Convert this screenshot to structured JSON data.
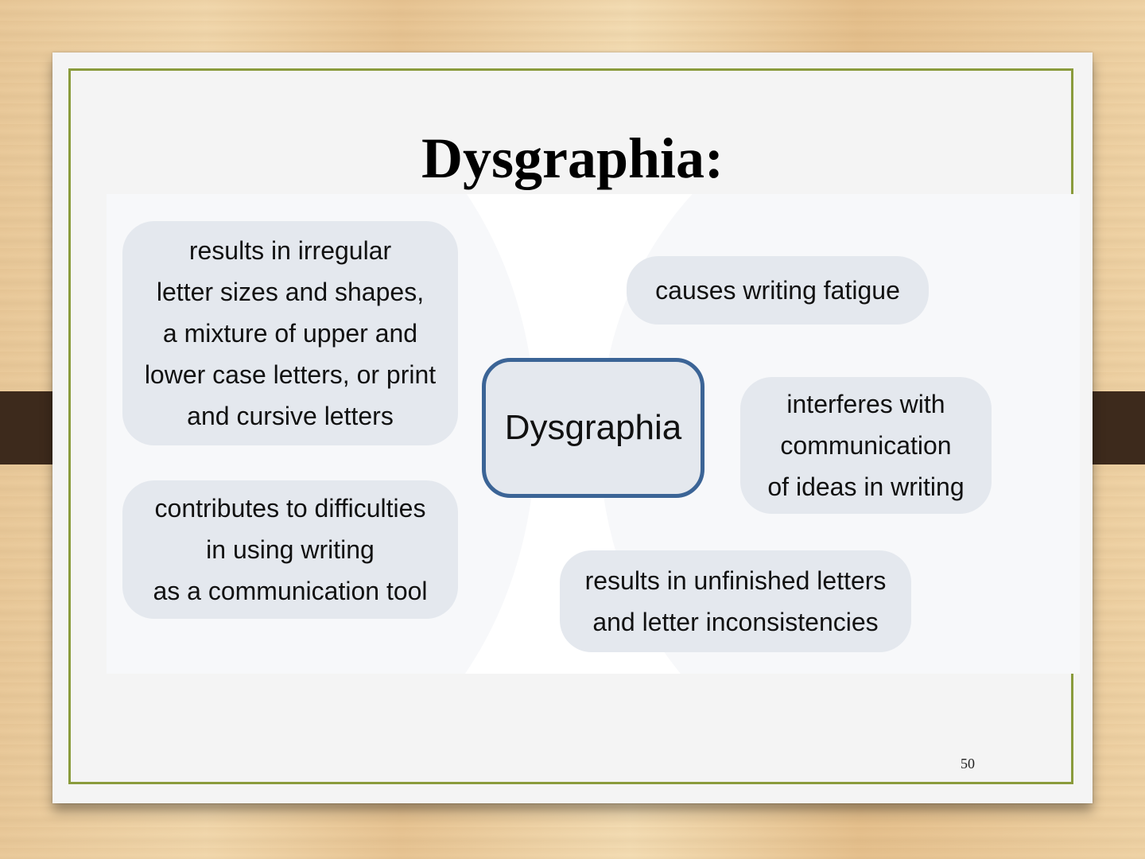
{
  "slide": {
    "title": "Dysgraphia:",
    "page_number": "50"
  },
  "diagram": {
    "center": "Dysgraphia",
    "nodes": [
      "results in irregular\nletter sizes and shapes,\na mixture of upper and\nlower case letters, or print\nand cursive letters",
      "contributes to difficulties\nin using writing\nas a communication tool",
      "causes writing fatigue",
      "interferes with\ncommunication\nof ideas in writing",
      "results in unfinished letters\nand letter inconsistencies"
    ]
  },
  "colors": {
    "frame": "#8a9b3c",
    "center_border": "#3b6496",
    "bubble_fill": "#e4e8ee",
    "strap": "#3d2a1c"
  }
}
